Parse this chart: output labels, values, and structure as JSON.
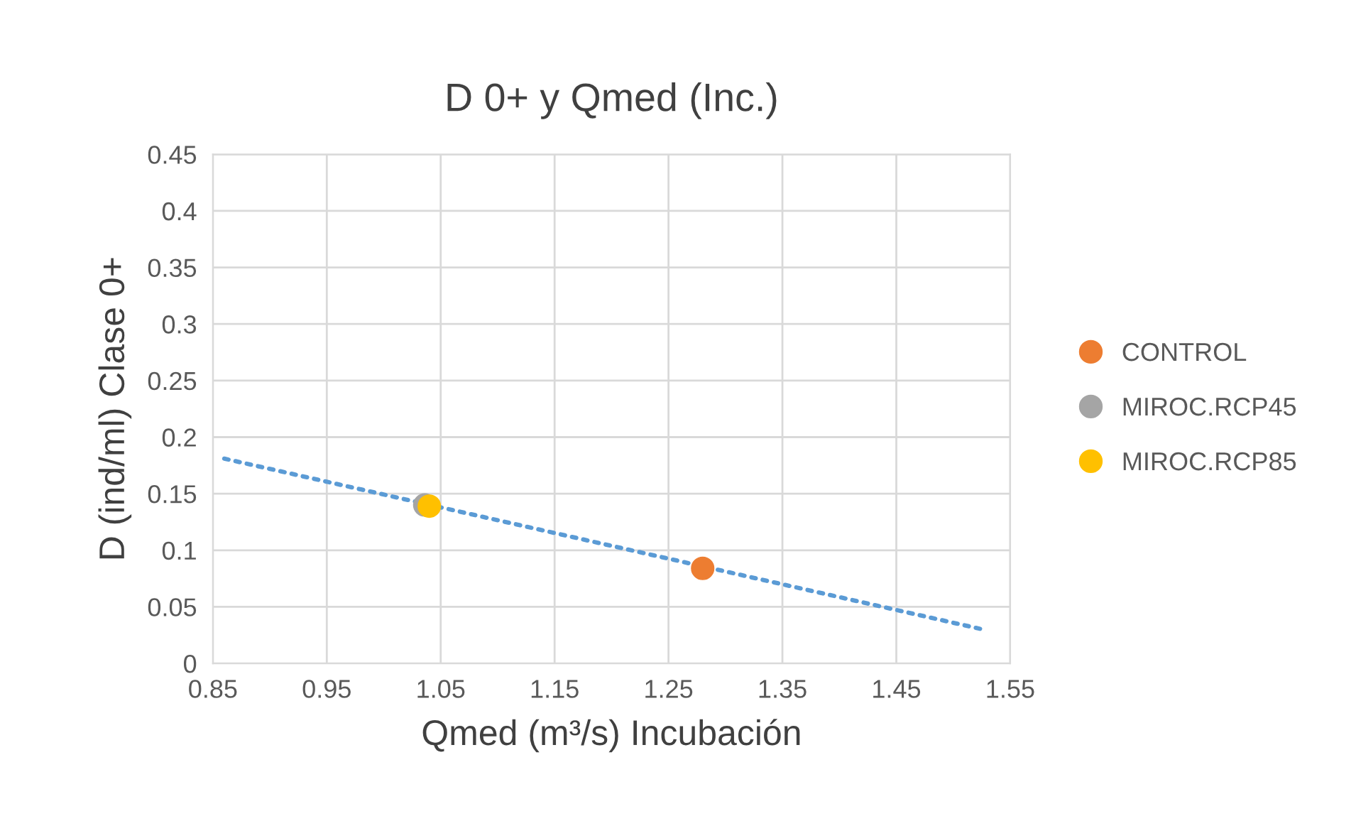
{
  "chart_data": {
    "type": "scatter",
    "title": "D 0+ y Qmed (Inc.)",
    "xlabel": "Qmed (m³/s) Incubación",
    "ylabel": "D (ind/ml) Clase 0+",
    "xlim": [
      0.85,
      1.55
    ],
    "xticks": [
      0.85,
      0.95,
      1.05,
      1.15,
      1.25,
      1.35,
      1.45,
      1.55
    ],
    "ylim": [
      0,
      0.45
    ],
    "yticks": [
      0,
      0.05,
      0.1,
      0.15,
      0.2,
      0.25,
      0.3,
      0.35,
      0.4,
      0.45
    ],
    "grid": true,
    "legend": "right",
    "marker": "circle",
    "series": [
      {
        "type": "line",
        "color": "#5b9bd5",
        "line_style": "dotted",
        "marker": "none",
        "x": [
          0.86,
          1.526
        ],
        "values": [
          0.181,
          0.03
        ]
      },
      {
        "name": "CONTROL",
        "color": "#ed7d31",
        "x": [
          1.28
        ],
        "values": [
          0.084
        ]
      },
      {
        "name": "MIROC.RCP45",
        "color": "#a5a5a5",
        "x": [
          1.036
        ],
        "values": [
          0.14
        ]
      },
      {
        "name": "MIROC.RCP85",
        "color": "#ffc000",
        "x": [
          1.04
        ],
        "values": [
          0.139
        ]
      }
    ]
  }
}
